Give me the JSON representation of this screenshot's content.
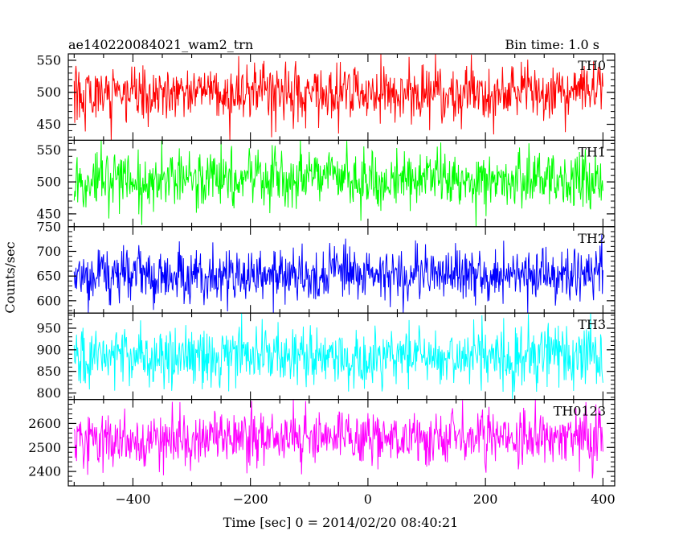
{
  "header": {
    "obs_id": "ae140220084021_wam2_trn",
    "bin_time": "Bin time: 1.0 s"
  },
  "axes": {
    "xlabel": "Time [sec] 0 = 2014/02/20 08:40:21",
    "ylabel": "Counts/sec",
    "xlim": [
      -510,
      420
    ],
    "xticks": [
      -400,
      -200,
      0,
      200,
      400
    ],
    "xtick_labels": [
      "−400",
      "−200",
      "0",
      "200",
      "400"
    ]
  },
  "chart_data": [
    {
      "type": "line",
      "name": "TH0",
      "color": "#ff0000",
      "x_range": [
        -500,
        400
      ],
      "ylim": [
        425,
        560
      ],
      "yticks": [
        450,
        500,
        550
      ],
      "mean": 498,
      "sigma": 22
    },
    {
      "type": "line",
      "name": "TH1",
      "color": "#00ff00",
      "x_range": [
        -500,
        400
      ],
      "ylim": [
        430,
        565
      ],
      "yticks": [
        450,
        500,
        550
      ],
      "mean": 505,
      "sigma": 23
    },
    {
      "type": "line",
      "name": "TH2",
      "color": "#0000ff",
      "x_range": [
        -500,
        400
      ],
      "ylim": [
        575,
        750
      ],
      "yticks": [
        600,
        650,
        700,
        750
      ],
      "mean": 652,
      "sigma": 27
    },
    {
      "type": "line",
      "name": "TH3",
      "color": "#00ffff",
      "x_range": [
        -500,
        400
      ],
      "ylim": [
        785,
        985
      ],
      "yticks": [
        800,
        850,
        900,
        950
      ],
      "mean": 885,
      "sigma": 35
    },
    {
      "type": "line",
      "name": "TH0123",
      "color": "#ff00ff",
      "x_range": [
        -500,
        400
      ],
      "ylim": [
        2340,
        2700
      ],
      "yticks": [
        2400,
        2500,
        2600
      ],
      "mean": 2540,
      "sigma": 60
    }
  ]
}
